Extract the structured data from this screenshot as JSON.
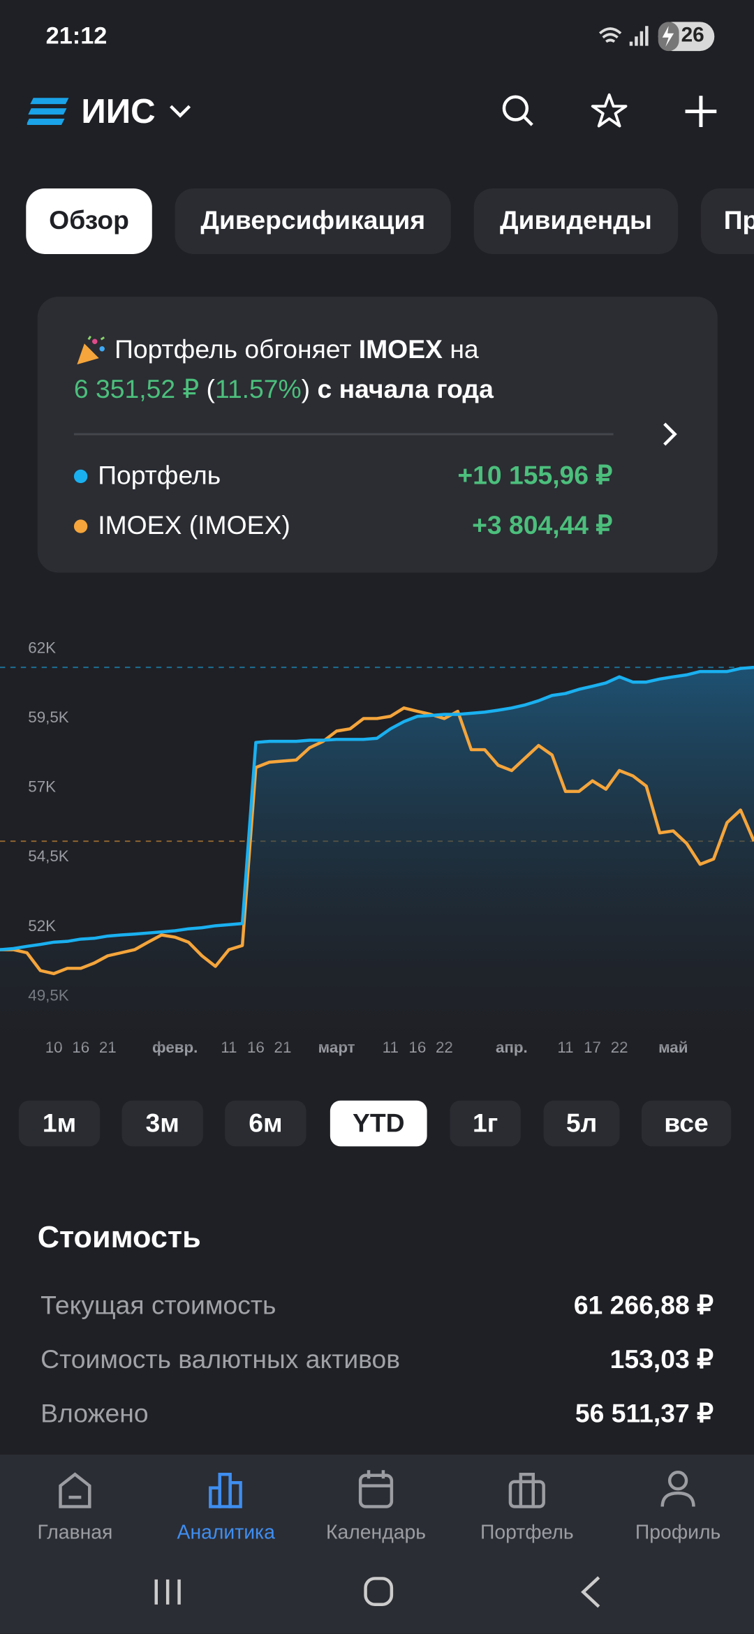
{
  "status_bar": {
    "time": "21:12",
    "battery": "26"
  },
  "header": {
    "title": "ИИС"
  },
  "tabs": [
    {
      "label": "Обзор",
      "active": true
    },
    {
      "label": "Диверсификация",
      "active": false
    },
    {
      "label": "Дивиденды",
      "active": false
    },
    {
      "label": "Пр",
      "active": false
    }
  ],
  "summary": {
    "text_before": "Портфель обгоняет",
    "index": "IMOEX",
    "text_on": "на",
    "amount": "6 351,52 ₽",
    "paren_open": "(",
    "percent": "11.57%",
    "paren_close": ")",
    "since": "с начала года",
    "values": [
      "+10 155,96 ₽",
      "+3 804,44 ₽"
    ]
  },
  "chart_data": {
    "type": "line",
    "categories": [
      null,
      null,
      null,
      null,
      "10",
      null,
      "16",
      null,
      "21",
      null,
      null,
      null,
      null,
      "февр.",
      null,
      null,
      null,
      "11",
      null,
      "16",
      null,
      "21",
      null,
      null,
      null,
      "март",
      null,
      null,
      null,
      "11",
      null,
      "16",
      null,
      "22",
      null,
      null,
      null,
      null,
      "апр.",
      null,
      null,
      null,
      "11",
      null,
      "17",
      null,
      "22",
      null,
      null,
      null,
      "май",
      null,
      null,
      null,
      null,
      null,
      null
    ],
    "series": [
      {
        "name": "Портфель",
        "color": "#1ab0f0",
        "values": [
          51180,
          51220,
          51300,
          51370,
          51450,
          51480,
          51560,
          51590,
          51670,
          51710,
          51740,
          51780,
          51820,
          51860,
          51930,
          51970,
          52040,
          52080,
          52120,
          58630,
          58670,
          58670,
          58670,
          58710,
          58710,
          58740,
          58740,
          58740,
          58780,
          59120,
          59380,
          59570,
          59600,
          59640,
          59640,
          59680,
          59720,
          59790,
          59870,
          59980,
          60130,
          60320,
          60390,
          60540,
          60650,
          60770,
          60990,
          60800,
          60800,
          60910,
          60990,
          61060,
          61180,
          61180,
          61180,
          61290,
          61330
        ]
      },
      {
        "name": "IMOEX (IMOEX)",
        "color": "#f5a53b",
        "values": [
          51180,
          51180,
          51070,
          50430,
          50320,
          50510,
          50510,
          50700,
          50960,
          51070,
          51180,
          51450,
          51710,
          51630,
          51450,
          50960,
          50580,
          51180,
          51330,
          57730,
          57920,
          57960,
          58000,
          58440,
          58670,
          59040,
          59120,
          59490,
          59490,
          59570,
          59870,
          59750,
          59640,
          59490,
          59750,
          58370,
          58370,
          57810,
          57620,
          58070,
          58520,
          58180,
          56870,
          56870,
          57250,
          56950,
          57620,
          57430,
          57060,
          55380,
          55450,
          55000,
          54250,
          54440,
          55750,
          56200,
          55080
        ]
      }
    ],
    "ylim": [
      48800,
      62900
    ],
    "yticks": [
      {
        "value": 62000,
        "label": "62K"
      },
      {
        "value": 59500,
        "label": "59,5K"
      },
      {
        "value": 57000,
        "label": "57K"
      },
      {
        "value": 54500,
        "label": "54,5K"
      },
      {
        "value": 52000,
        "label": "52K"
      },
      {
        "value": 49500,
        "label": "49,5K"
      }
    ],
    "grid": false
  },
  "periods": [
    {
      "label": "1м",
      "active": false
    },
    {
      "label": "3м",
      "active": false
    },
    {
      "label": "6м",
      "active": false
    },
    {
      "label": "YTD",
      "active": true
    },
    {
      "label": "1г",
      "active": false
    },
    {
      "label": "5л",
      "active": false
    },
    {
      "label": "все",
      "active": false
    }
  ],
  "value_section": {
    "title": "Стоимость",
    "rows": [
      {
        "label": "Текущая стоимость",
        "value": "61 266,88 ₽"
      },
      {
        "label": "Стоимость валютных активов",
        "value": "153,03 ₽"
      },
      {
        "label": "Вложено",
        "value": "56 511,37 ₽"
      }
    ]
  },
  "nav": [
    {
      "label": "Главная",
      "active": false
    },
    {
      "label": "Аналитика",
      "active": true
    },
    {
      "label": "Календарь",
      "active": false
    },
    {
      "label": "Портфель",
      "active": false
    },
    {
      "label": "Профиль",
      "active": false
    }
  ]
}
